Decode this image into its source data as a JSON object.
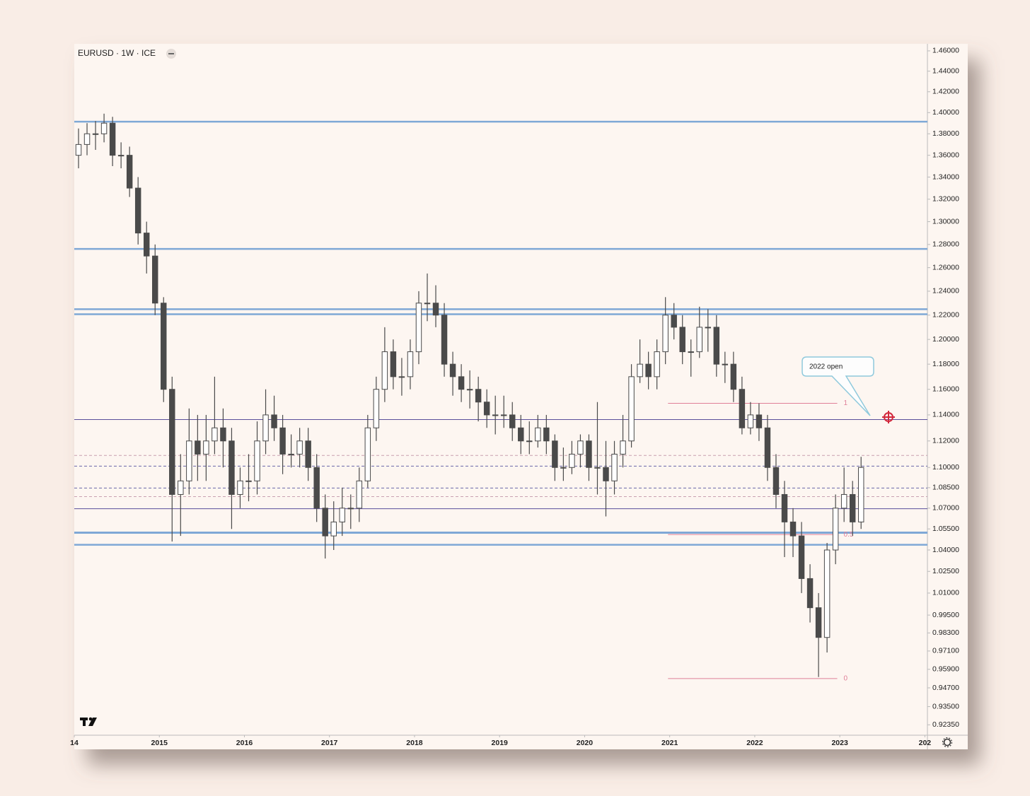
{
  "chart_data": {
    "type": "candlestick",
    "title": "EURUSD · 1W · ICE",
    "log_scale": true,
    "grid": false,
    "up_color": "#ffffff",
    "down_color": "#4a4a4a",
    "outline_color": "#4a4a4a",
    "xlim": [
      2014.0,
      2024.03
    ],
    "xticks": [
      {
        "value": 2014,
        "label": "14"
      },
      2015,
      2016,
      2017,
      2018,
      2019,
      2020,
      2021,
      2022,
      2023,
      {
        "value": 2024,
        "label": "202"
      }
    ],
    "ylim": [
      0.917,
      1.467
    ],
    "yticks": [
      {
        "value": 1.46,
        "label": "1.46000"
      },
      {
        "value": 1.44,
        "label": "1.44000"
      },
      {
        "value": 1.42,
        "label": "1.42000"
      },
      {
        "value": 1.4,
        "label": "1.40000"
      },
      {
        "value": 1.38,
        "label": "1.38000"
      },
      {
        "value": 1.36,
        "label": "1.36000"
      },
      {
        "value": 1.34,
        "label": "1.34000"
      },
      {
        "value": 1.32,
        "label": "1.32000"
      },
      {
        "value": 1.3,
        "label": "1.30000"
      },
      {
        "value": 1.28,
        "label": "1.28000"
      },
      {
        "value": 1.26,
        "label": "1.26000"
      },
      {
        "value": 1.24,
        "label": "1.24000"
      },
      {
        "value": 1.22,
        "label": "1.22000"
      },
      {
        "value": 1.2,
        "label": "1.20000"
      },
      {
        "value": 1.18,
        "label": "1.18000"
      },
      {
        "value": 1.16,
        "label": "1.16000"
      },
      {
        "value": 1.14,
        "label": "1.14000"
      },
      {
        "value": 1.12,
        "label": "1.12000"
      },
      {
        "value": 1.1,
        "label": "1.10000"
      },
      {
        "value": 1.085,
        "label": "1.08500"
      },
      {
        "value": 1.07,
        "label": "1.07000"
      },
      {
        "value": 1.055,
        "label": "1.05500"
      },
      {
        "value": 1.04,
        "label": "1.04000"
      },
      {
        "value": 1.025,
        "label": "1.02500"
      },
      {
        "value": 1.01,
        "label": "1.01000"
      },
      {
        "value": 0.995,
        "label": "0.99500"
      },
      {
        "value": 0.983,
        "label": "0.98300"
      },
      {
        "value": 0.971,
        "label": "0.97100"
      },
      {
        "value": 0.959,
        "label": "0.95900"
      },
      {
        "value": 0.947,
        "label": "0.94700"
      },
      {
        "value": 0.935,
        "label": "0.93500"
      },
      {
        "value": 0.9235,
        "label": "0.92350"
      }
    ],
    "x": [
      2014.05,
      2014.15,
      2014.25,
      2014.35,
      2014.45,
      2014.55,
      2014.65,
      2014.75,
      2014.85,
      2014.95,
      2015.05,
      2015.15,
      2015.25,
      2015.35,
      2015.45,
      2015.55,
      2015.65,
      2015.75,
      2015.85,
      2015.95,
      2016.05,
      2016.15,
      2016.25,
      2016.35,
      2016.45,
      2016.55,
      2016.65,
      2016.75,
      2016.85,
      2016.95,
      2017.05,
      2017.15,
      2017.25,
      2017.35,
      2017.45,
      2017.55,
      2017.65,
      2017.75,
      2017.85,
      2017.95,
      2018.05,
      2018.15,
      2018.25,
      2018.35,
      2018.45,
      2018.55,
      2018.65,
      2018.75,
      2018.85,
      2018.95,
      2019.05,
      2019.15,
      2019.25,
      2019.35,
      2019.45,
      2019.55,
      2019.65,
      2019.75,
      2019.85,
      2019.95,
      2020.05,
      2020.15,
      2020.25,
      2020.35,
      2020.45,
      2020.55,
      2020.65,
      2020.75,
      2020.85,
      2020.95,
      2021.05,
      2021.15,
      2021.25,
      2021.35,
      2021.45,
      2021.55,
      2021.65,
      2021.75,
      2021.85,
      2021.95,
      2022.05,
      2022.15,
      2022.25,
      2022.35,
      2022.45,
      2022.55,
      2022.65,
      2022.75,
      2022.85,
      2022.95,
      2023.05,
      2023.15,
      2023.25
    ],
    "open": [
      1.36,
      1.37,
      1.38,
      1.38,
      1.39,
      1.36,
      1.36,
      1.33,
      1.29,
      1.27,
      1.23,
      1.16,
      1.08,
      1.09,
      1.12,
      1.11,
      1.12,
      1.13,
      1.12,
      1.08,
      1.09,
      1.09,
      1.12,
      1.14,
      1.13,
      1.11,
      1.11,
      1.12,
      1.1,
      1.07,
      1.05,
      1.06,
      1.07,
      1.07,
      1.09,
      1.13,
      1.16,
      1.19,
      1.17,
      1.17,
      1.19,
      1.23,
      1.23,
      1.22,
      1.18,
      1.17,
      1.16,
      1.16,
      1.15,
      1.14,
      1.14,
      1.14,
      1.13,
      1.12,
      1.12,
      1.13,
      1.12,
      1.1,
      1.1,
      1.11,
      1.12,
      1.1,
      1.1,
      1.09,
      1.11,
      1.12,
      1.17,
      1.18,
      1.17,
      1.19,
      1.22,
      1.21,
      1.19,
      1.19,
      1.21,
      1.21,
      1.18,
      1.18,
      1.16,
      1.13,
      1.14,
      1.13,
      1.1,
      1.08,
      1.06,
      1.05,
      1.02,
      1.0,
      0.98,
      1.04,
      1.07,
      1.08,
      1.06
    ],
    "high": [
      1.385,
      1.39,
      1.392,
      1.399,
      1.396,
      1.372,
      1.368,
      1.34,
      1.3,
      1.28,
      1.235,
      1.17,
      1.11,
      1.145,
      1.14,
      1.14,
      1.17,
      1.145,
      1.13,
      1.1,
      1.11,
      1.135,
      1.16,
      1.155,
      1.14,
      1.125,
      1.13,
      1.13,
      1.11,
      1.08,
      1.075,
      1.085,
      1.08,
      1.1,
      1.14,
      1.17,
      1.21,
      1.2,
      1.185,
      1.2,
      1.24,
      1.255,
      1.245,
      1.23,
      1.19,
      1.18,
      1.175,
      1.17,
      1.16,
      1.155,
      1.155,
      1.15,
      1.14,
      1.135,
      1.14,
      1.14,
      1.125,
      1.115,
      1.12,
      1.125,
      1.125,
      1.15,
      1.12,
      1.12,
      1.14,
      1.18,
      1.2,
      1.19,
      1.2,
      1.235,
      1.23,
      1.22,
      1.2,
      1.227,
      1.225,
      1.22,
      1.19,
      1.19,
      1.17,
      1.15,
      1.149,
      1.14,
      1.11,
      1.09,
      1.07,
      1.06,
      1.03,
      1.01,
      1.045,
      1.08,
      1.1,
      1.09,
      1.108
    ],
    "low": [
      1.348,
      1.36,
      1.365,
      1.372,
      1.35,
      1.348,
      1.322,
      1.28,
      1.255,
      1.22,
      1.15,
      1.046,
      1.05,
      1.08,
      1.09,
      1.09,
      1.11,
      1.1,
      1.055,
      1.07,
      1.075,
      1.08,
      1.11,
      1.12,
      1.095,
      1.1,
      1.1,
      1.09,
      1.06,
      1.034,
      1.04,
      1.05,
      1.055,
      1.06,
      1.085,
      1.12,
      1.15,
      1.16,
      1.155,
      1.16,
      1.18,
      1.215,
      1.21,
      1.17,
      1.155,
      1.15,
      1.145,
      1.135,
      1.13,
      1.125,
      1.13,
      1.12,
      1.11,
      1.11,
      1.115,
      1.11,
      1.09,
      1.09,
      1.095,
      1.1,
      1.09,
      1.08,
      1.064,
      1.08,
      1.1,
      1.115,
      1.165,
      1.16,
      1.16,
      1.18,
      1.2,
      1.18,
      1.17,
      1.185,
      1.19,
      1.17,
      1.165,
      1.15,
      1.125,
      1.125,
      1.12,
      1.09,
      1.07,
      1.035,
      1.035,
      1.01,
      0.99,
      0.954,
      0.97,
      1.03,
      1.06,
      1.05,
      1.055
    ],
    "close": [
      1.37,
      1.38,
      1.38,
      1.39,
      1.36,
      1.36,
      1.33,
      1.29,
      1.27,
      1.23,
      1.16,
      1.08,
      1.09,
      1.12,
      1.11,
      1.12,
      1.13,
      1.12,
      1.08,
      1.09,
      1.09,
      1.12,
      1.14,
      1.13,
      1.11,
      1.11,
      1.12,
      1.1,
      1.07,
      1.05,
      1.06,
      1.07,
      1.07,
      1.09,
      1.13,
      1.16,
      1.19,
      1.17,
      1.17,
      1.19,
      1.23,
      1.23,
      1.22,
      1.18,
      1.17,
      1.16,
      1.16,
      1.15,
      1.14,
      1.14,
      1.14,
      1.13,
      1.12,
      1.12,
      1.13,
      1.12,
      1.1,
      1.1,
      1.11,
      1.12,
      1.1,
      1.1,
      1.09,
      1.11,
      1.12,
      1.17,
      1.18,
      1.17,
      1.19,
      1.22,
      1.21,
      1.19,
      1.19,
      1.21,
      1.21,
      1.18,
      1.18,
      1.16,
      1.13,
      1.14,
      1.13,
      1.1,
      1.08,
      1.06,
      1.05,
      1.02,
      1.0,
      0.98,
      1.04,
      1.07,
      1.08,
      1.06,
      1.1
    ],
    "hlines": [
      {
        "value": 1.3914,
        "color": "#7fa8d6",
        "width": 2.5,
        "style": "solid"
      },
      {
        "value": 1.2761,
        "color": "#7fa8d6",
        "width": 2.5,
        "style": "solid"
      },
      {
        "value": 1.2249,
        "color": "#7fa8d6",
        "width": 2.5,
        "style": "solid"
      },
      {
        "value": 1.2207,
        "color": "#7fa8d6",
        "width": 2.5,
        "style": "solid"
      },
      {
        "value": 1.0523,
        "color": "#7fa8d6",
        "width": 3,
        "style": "solid"
      },
      {
        "value": 1.0437,
        "color": "#7fa8d6",
        "width": 2.5,
        "style": "solid"
      },
      {
        "value": 1.1364,
        "color": "#5a4e9a",
        "width": 1,
        "style": "solid"
      },
      {
        "value": 1.0696,
        "color": "#5a4e9a",
        "width": 1,
        "style": "solid"
      },
      {
        "value": 1.109,
        "color": "#c8a0b0",
        "width": 1,
        "style": "dashed"
      },
      {
        "value": 1.101,
        "color": "#6a66a8",
        "width": 1,
        "style": "dashed"
      },
      {
        "value": 1.0847,
        "color": "#6a66a8",
        "width": 1,
        "style": "dashed"
      },
      {
        "value": 1.0784,
        "color": "#c8a0b0",
        "width": 1,
        "style": "dashed"
      }
    ],
    "fib": {
      "x": [
        2020.98,
        2022.97
      ],
      "color": "#e07f98",
      "levels": [
        {
          "value": 1.149,
          "label": "1"
        },
        {
          "value": 1.051,
          "label": "0.5"
        },
        {
          "value": 0.953,
          "label": "0"
        }
      ]
    },
    "annotation": "2022 open"
  }
}
